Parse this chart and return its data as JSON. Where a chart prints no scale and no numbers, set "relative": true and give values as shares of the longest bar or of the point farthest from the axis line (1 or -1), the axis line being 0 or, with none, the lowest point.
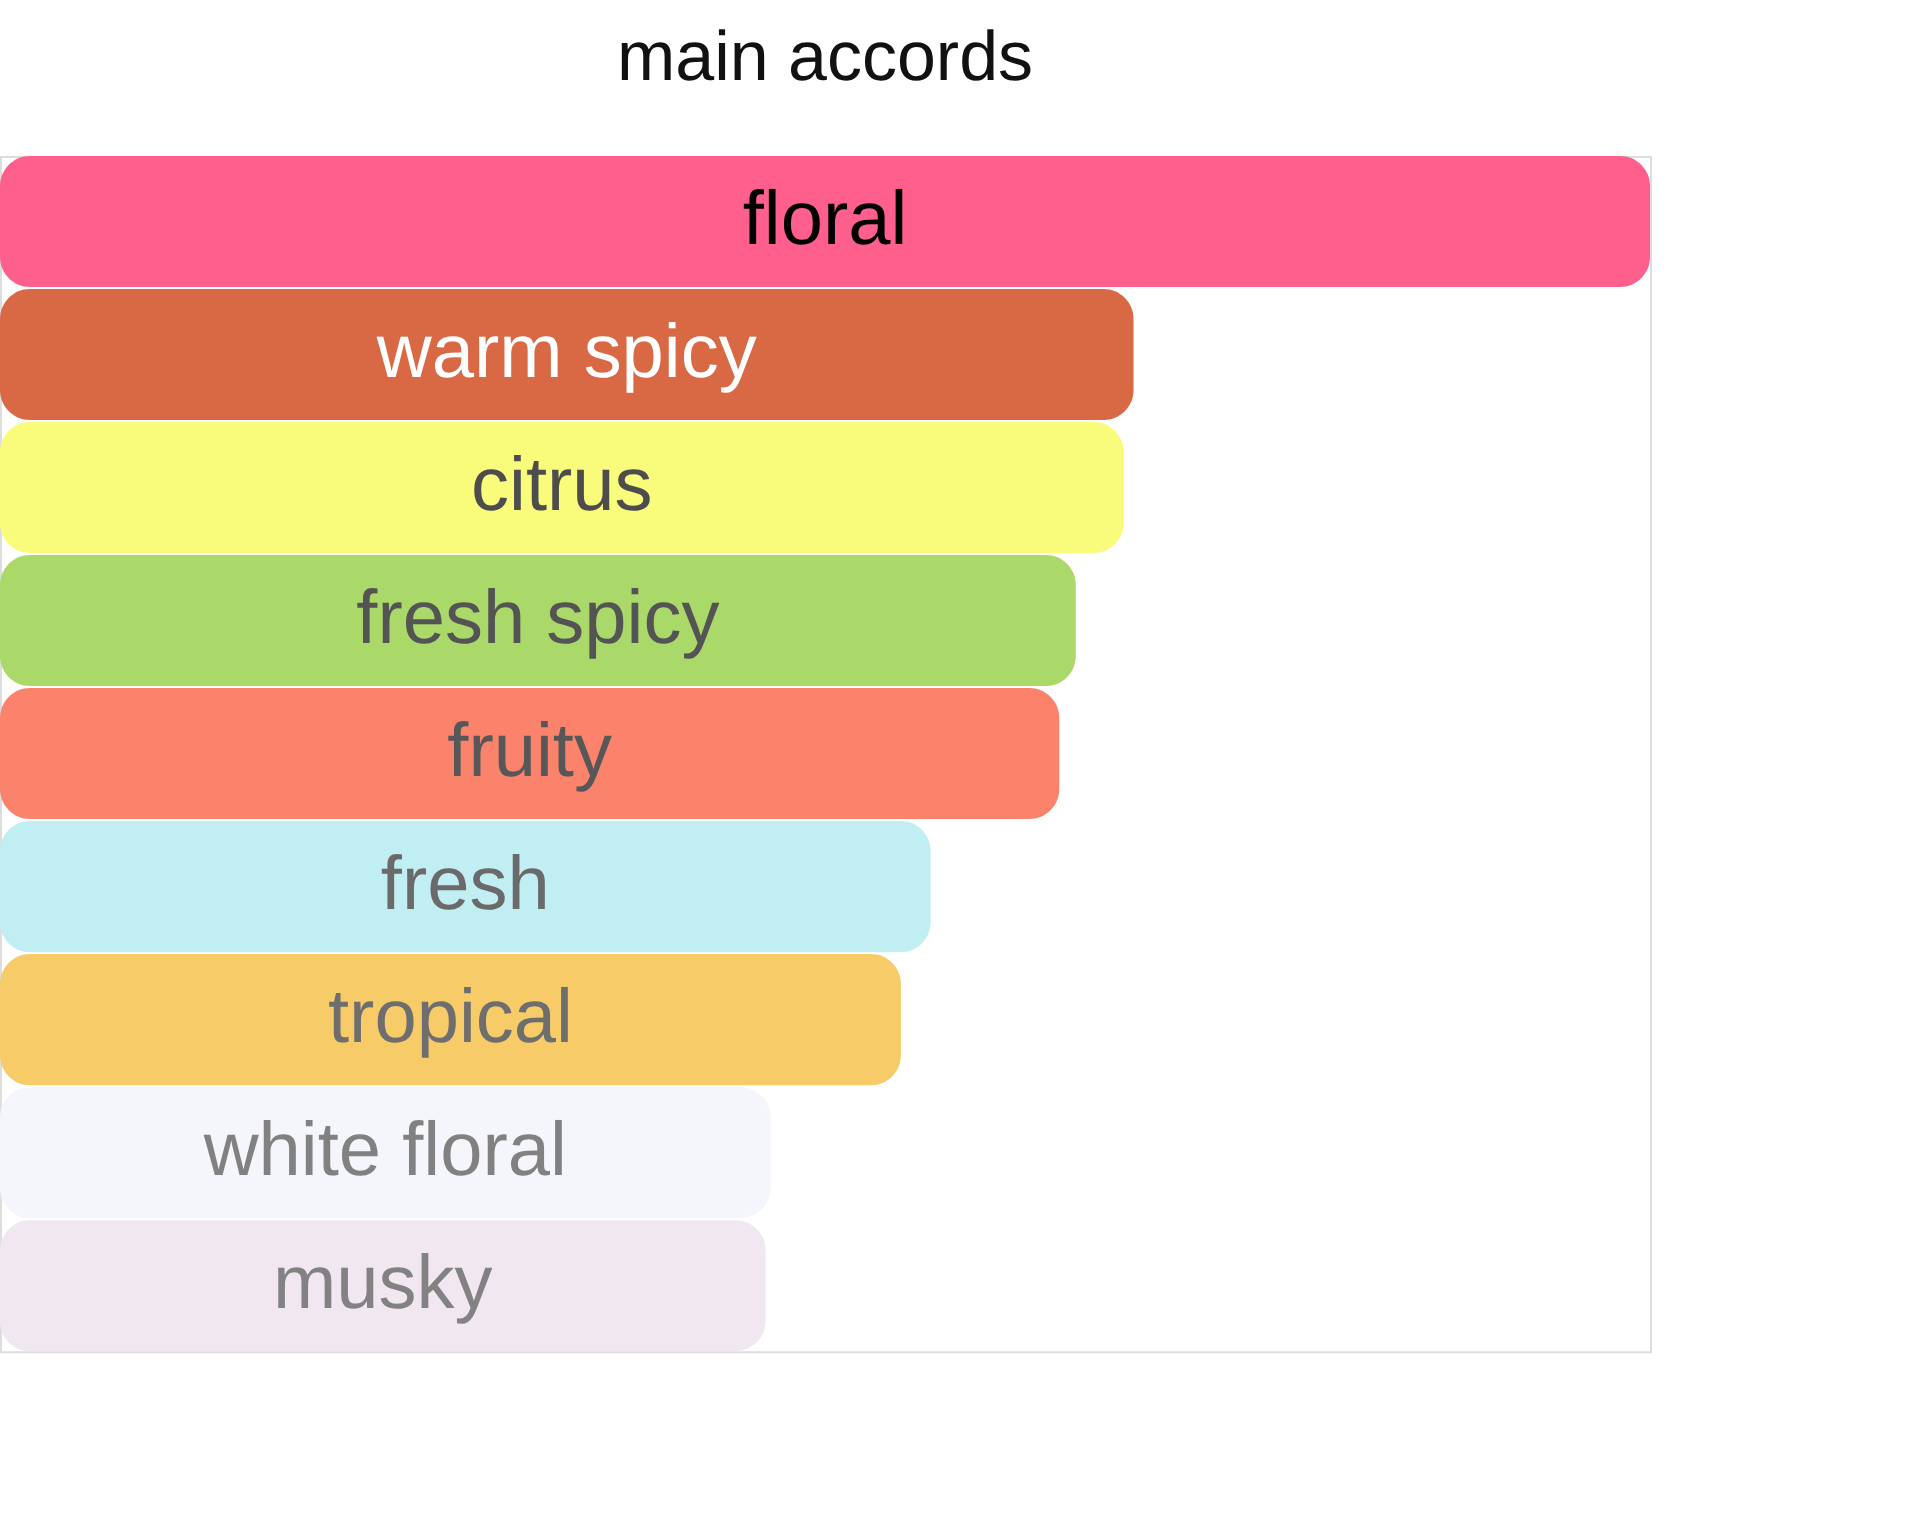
{
  "chart_data": {
    "type": "bar",
    "title": "main accords",
    "orientation": "horizontal",
    "relative": true,
    "categories": [
      "floral",
      "warm spicy",
      "citrus",
      "fresh spicy",
      "fruity",
      "fresh",
      "tropical",
      "white floral",
      "musky"
    ],
    "values": [
      1,
      0.687,
      0.681,
      0.652,
      0.642,
      0.564,
      0.546,
      0.467,
      0.464
    ],
    "colors": [
      "#fe5f8c",
      "#d86944",
      "#f9fc7b",
      "#aad96a",
      "#fc836b",
      "#c1eef2",
      "#f8cb69",
      "#f5f6fb",
      "#f1e7f1"
    ]
  }
}
